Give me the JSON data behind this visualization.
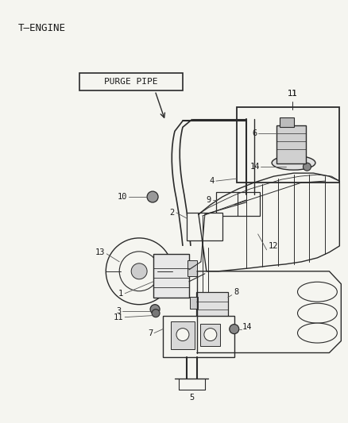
{
  "title": "T–ENGINE",
  "purge_pipe_label": "PURGE PIPE",
  "background_color": "#f5f5f0",
  "line_color": "#2a2a2a",
  "text_color": "#1a1a1a",
  "fig_width": 4.38,
  "fig_height": 5.33,
  "dpi": 100,
  "label_fontsize": 7.5,
  "title_fontsize": 9
}
